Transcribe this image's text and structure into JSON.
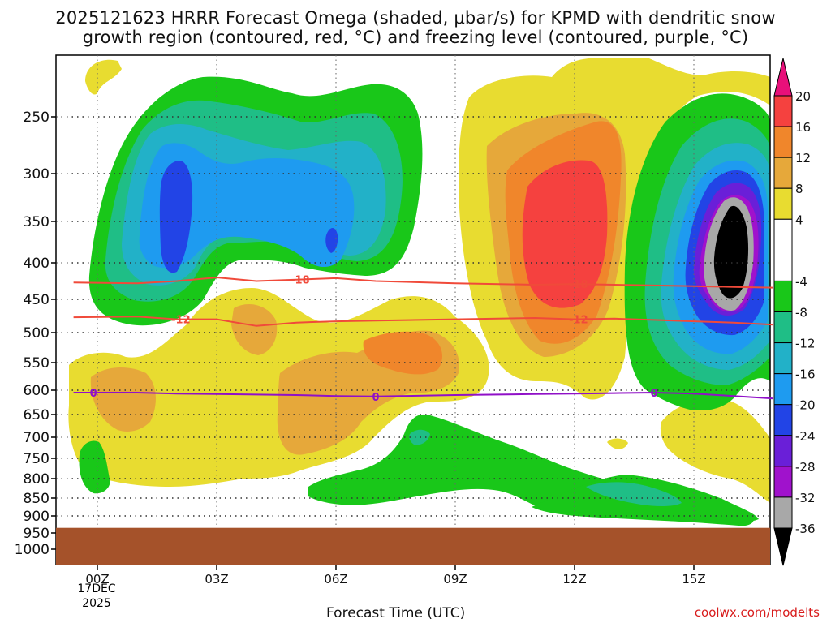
{
  "header": {
    "line1": "2025121623 HRRR Forecast Omega (shaded, μbar/s) for KPMD with dendritic snow",
    "line2": "growth region (contoured, red, °C) and freezing level (contoured, purple, °C)"
  },
  "chart_data": {
    "type": "time-height contour",
    "title": "2025121623 HRRR Forecast Omega (shaded, μbar/s) for KPMD with dendritic snow growth region (contoured, red, °C) and freezing level (contoured, purple, °C)",
    "xlabel": "Forecast Time (UTC)",
    "ylabel": "",
    "x_ticks": [
      "00Z",
      "03Z",
      "06Z",
      "09Z",
      "12Z",
      "15Z"
    ],
    "x_tick_hours": [
      0,
      3,
      6,
      9,
      12,
      15
    ],
    "x_date_label": [
      "17DEC",
      "2025"
    ],
    "xlim_hours": [
      -0.6,
      17
    ],
    "y_ticks": [
      250,
      300,
      350,
      400,
      450,
      500,
      550,
      600,
      650,
      700,
      750,
      800,
      850,
      900,
      950,
      1000
    ],
    "ylim_hpa": [
      200,
      1040
    ],
    "surface_pressure_hpa": 935,
    "colorbar": {
      "label_values": [
        20,
        16,
        12,
        8,
        4,
        -4,
        -8,
        -12,
        -16,
        -20,
        -24,
        -28,
        -32,
        -36
      ],
      "label_text": [
        "20",
        "16",
        "12",
        "8",
        "4",
        "-4",
        "-8",
        "-12",
        "-16",
        "-20",
        "-24",
        "-28",
        "-32",
        "-36"
      ],
      "bands": [
        {
          "min": 20,
          "max": 24,
          "color": "#e8107a"
        },
        {
          "min": 16,
          "max": 20,
          "color": "#f5413f"
        },
        {
          "min": 12,
          "max": 16,
          "color": "#f0862b"
        },
        {
          "min": 8,
          "max": 12,
          "color": "#e6a83a"
        },
        {
          "min": 4,
          "max": 8,
          "color": "#e8dc30"
        },
        {
          "min": -4,
          "max": 4,
          "color": "#ffffff"
        },
        {
          "min": -8,
          "max": -4,
          "color": "#19c719"
        },
        {
          "min": -12,
          "max": -8,
          "color": "#1fbe86"
        },
        {
          "min": -16,
          "max": -12,
          "color": "#22b1c8"
        },
        {
          "min": -20,
          "max": -16,
          "color": "#1e9bf0"
        },
        {
          "min": -24,
          "max": -20,
          "color": "#2244e6"
        },
        {
          "min": -28,
          "max": -24,
          "color": "#6a1fd8"
        },
        {
          "min": -32,
          "max": -28,
          "color": "#a012cc"
        },
        {
          "min": -36,
          "max": -32,
          "color": "#a8a8a8"
        },
        {
          "min": -40,
          "max": -36,
          "color": "#000000"
        }
      ]
    },
    "contours": [
      {
        "name": "dgz-top",
        "value": -18,
        "label": "-18",
        "color": "#f04a3a",
        "hours": [
          -0.6,
          1,
          2,
          3,
          4,
          5,
          6,
          7,
          9,
          11,
          12,
          13,
          14,
          15,
          16,
          17
        ],
        "pressure": [
          427,
          428,
          425,
          420,
          425,
          423,
          421,
          425,
          428,
          430,
          429,
          430,
          431,
          432,
          433,
          434
        ],
        "label_hours": [
          5.1,
          12.1
        ]
      },
      {
        "name": "dgz-bottom",
        "value": -12,
        "label": "-12",
        "color": "#f04a3a",
        "hours": [
          -0.6,
          1,
          2,
          3,
          4,
          5,
          6,
          7,
          9,
          11,
          12,
          13,
          14,
          15,
          16,
          17
        ],
        "pressure": [
          477,
          476,
          480,
          480,
          490,
          485,
          483,
          482,
          480,
          478,
          480,
          479,
          481,
          483,
          485,
          488
        ],
        "label_hours": [
          2.1,
          12.1
        ]
      },
      {
        "name": "freezing-level",
        "value": 0,
        "label": "0",
        "color": "#9010c8",
        "hours": [
          -0.6,
          1,
          2,
          3,
          4,
          5,
          6,
          7,
          9,
          11,
          12,
          13,
          14,
          15,
          16,
          17
        ],
        "pressure": [
          605,
          605,
          607,
          608,
          609,
          610,
          612,
          613,
          610,
          608,
          607,
          606,
          605,
          607,
          612,
          617
        ],
        "label_hours": [
          -0.1,
          7.0,
          14.0
        ]
      }
    ],
    "features": [
      {
        "name": "omega-upward-core-01z",
        "center_hour": 2.0,
        "center_hpa": 345,
        "min_omega": -24
      },
      {
        "name": "omega-upward-core-06z",
        "center_hour": 5.9,
        "center_hpa": 360,
        "min_omega": -20
      },
      {
        "name": "omega-downward-max-12z",
        "center_hour": 11.5,
        "center_hpa": 340,
        "max_omega": 17
      },
      {
        "name": "omega-upward-max-16z",
        "center_hour": 16.0,
        "center_hpa": 355,
        "min_omega": -38
      }
    ]
  },
  "axes": {
    "x_ticks": [
      "00Z",
      "03Z",
      "06Z",
      "09Z",
      "12Z",
      "15Z"
    ],
    "date_line1": "17DEC",
    "date_line2": "2025",
    "xlabel": "Forecast Time (UTC)",
    "y_ticks": [
      "250",
      "300",
      "350",
      "400",
      "450",
      "500",
      "550",
      "600",
      "650",
      "700",
      "750",
      "800",
      "850",
      "900",
      "950",
      "1000"
    ]
  },
  "credit": "coolwx.com/modelts"
}
